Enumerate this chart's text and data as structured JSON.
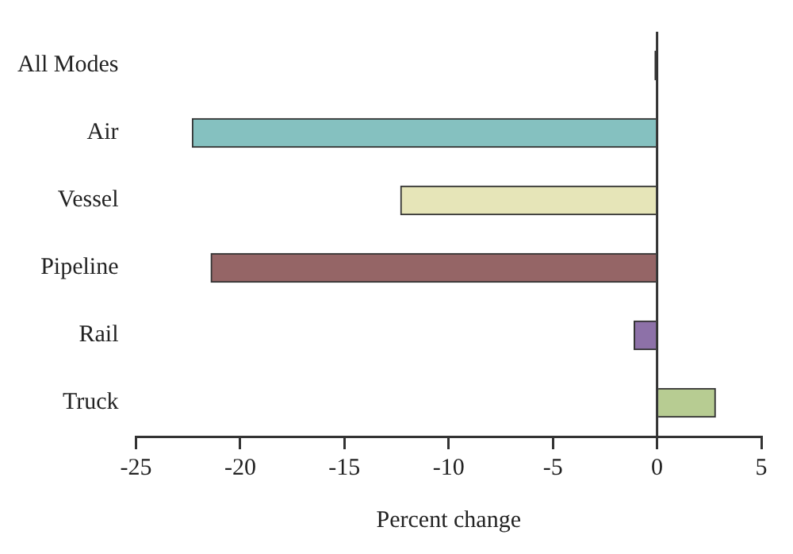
{
  "chart_data": {
    "type": "bar",
    "orientation": "horizontal",
    "xlabel": "Percent change",
    "categories": [
      "All Modes",
      "Air",
      "Vessel",
      "Pipeline",
      "Rail",
      "Truck"
    ],
    "values": [
      -0.1,
      -22.3,
      -12.3,
      -21.4,
      -1.1,
      2.8
    ],
    "colors": [
      "#333333",
      "#85c1c0",
      "#e6e5b8",
      "#956566",
      "#8d71a8",
      "#b7cc92"
    ],
    "xlim": [
      -25,
      5
    ],
    "xticks": [
      -25,
      -20,
      -15,
      -10,
      -5,
      0,
      5
    ],
    "ref_lines": [
      {
        "axis": "x",
        "value": 0,
        "color": "#333333"
      }
    ],
    "grid": false,
    "legend": false
  }
}
